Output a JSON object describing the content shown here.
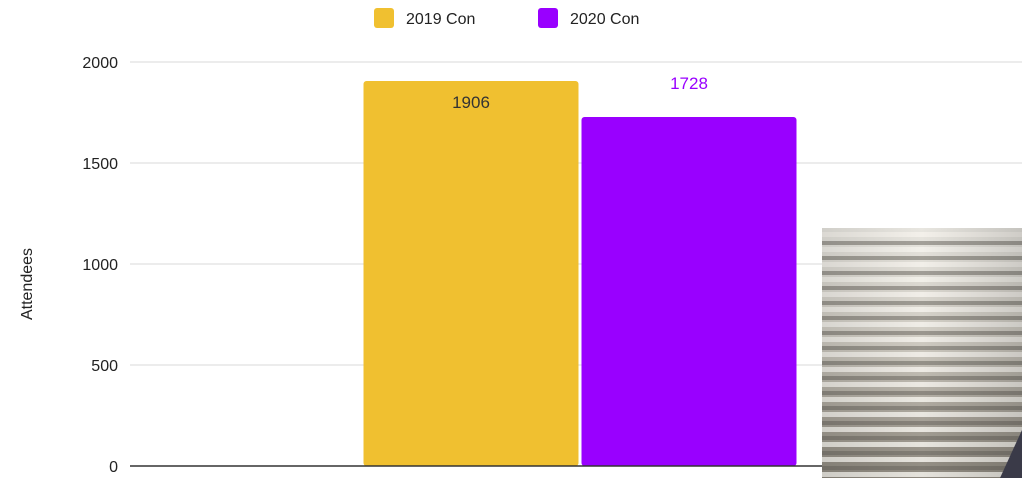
{
  "chart_data": {
    "type": "bar",
    "categories": [
      ""
    ],
    "series": [
      {
        "name": "2019 Con",
        "values": [
          1906
        ],
        "color": "#F0C030"
      },
      {
        "name": "2020 Con",
        "values": [
          1728
        ],
        "color": "#9900FF"
      }
    ],
    "data_labels": [
      "1906",
      "1728"
    ],
    "data_label_colors": [
      "#333333",
      "#9900FF"
    ],
    "title": "",
    "xlabel": "",
    "ylabel": "Attendees",
    "ylim": [
      0,
      2000
    ],
    "yticks": [
      0,
      500,
      1000,
      1500,
      2000
    ],
    "ytick_labels": [
      "0",
      "500",
      "1000",
      "1500",
      "2000"
    ],
    "grid": true,
    "legend_position": "top"
  },
  "colors": {
    "gridline": "#D9D9D9",
    "baseline": "#333333",
    "tick_text": "#222222"
  },
  "overlay_image": {
    "description_icon": "window-blinds-photo"
  }
}
